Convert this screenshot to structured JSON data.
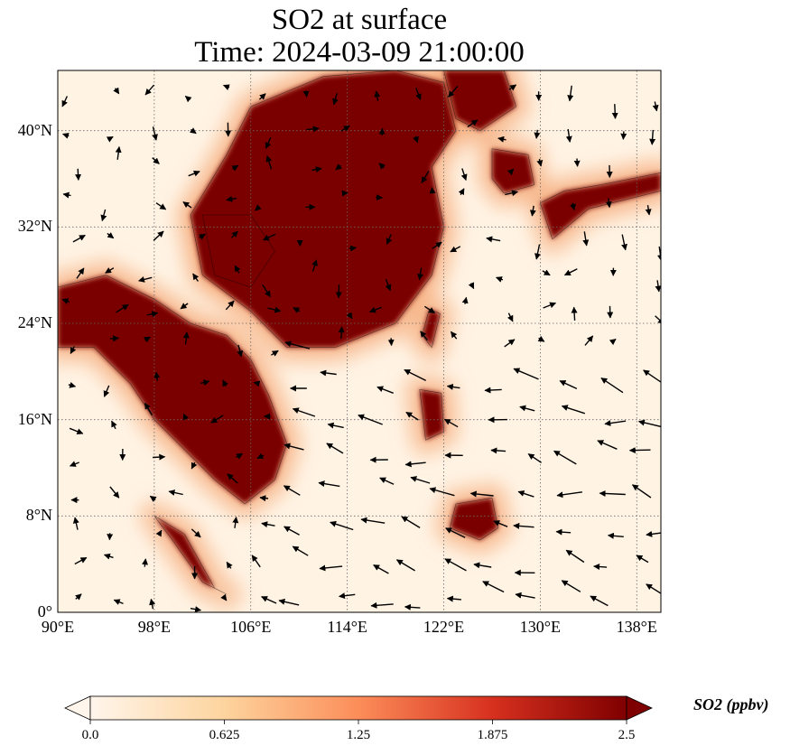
{
  "title_line1": "SO2 at surface",
  "title_line2": "Time: 2024-03-09 21:00:00",
  "map": {
    "lon_range": [
      90,
      140
    ],
    "lat_range": [
      0,
      45
    ],
    "lat_ticks": [
      {
        "value": 0,
        "label": "0°"
      },
      {
        "value": 8,
        "label": "8°N"
      },
      {
        "value": 16,
        "label": "16°N"
      },
      {
        "value": 24,
        "label": "24°N"
      },
      {
        "value": 32,
        "label": "32°N"
      },
      {
        "value": 40,
        "label": "40°N"
      }
    ],
    "lon_ticks": [
      {
        "value": 90,
        "label": "90°E"
      },
      {
        "value": 98,
        "label": "98°E"
      },
      {
        "value": 106,
        "label": "106°E"
      },
      {
        "value": 114,
        "label": "114°E"
      },
      {
        "value": 122,
        "label": "122°E"
      },
      {
        "value": 130,
        "label": "130°E"
      },
      {
        "value": 138,
        "label": "138°E"
      }
    ],
    "gridlines": true,
    "high_so2_regions": [
      {
        "name": "north-china-plain",
        "lon_lat": [
          [
            106,
            42
          ],
          [
            112,
            44.5
          ],
          [
            118,
            45
          ],
          [
            122,
            44
          ],
          [
            123,
            40
          ],
          [
            121,
            37
          ],
          [
            122,
            32
          ],
          [
            121,
            28
          ],
          [
            118,
            24
          ],
          [
            113,
            22
          ],
          [
            109,
            22
          ],
          [
            106,
            25
          ],
          [
            102,
            28
          ],
          [
            101,
            33
          ],
          [
            104,
            38
          ]
        ]
      },
      {
        "name": "sichuan-basin",
        "lon_lat": [
          [
            102,
            33
          ],
          [
            106,
            33
          ],
          [
            108,
            30
          ],
          [
            106,
            27
          ],
          [
            103,
            28
          ]
        ]
      },
      {
        "name": "northeast-china",
        "lon_lat": [
          [
            122,
            45
          ],
          [
            127,
            45
          ],
          [
            128,
            42
          ],
          [
            125,
            40
          ],
          [
            123,
            41
          ]
        ]
      },
      {
        "name": "korea",
        "lon_lat": [
          [
            126,
            38.5
          ],
          [
            129,
            38
          ],
          [
            129.5,
            35.5
          ],
          [
            127,
            34.8
          ],
          [
            126,
            36
          ]
        ]
      },
      {
        "name": "indochina",
        "lon_lat": [
          [
            90,
            27
          ],
          [
            94,
            28
          ],
          [
            98,
            26
          ],
          [
            101,
            24
          ],
          [
            104,
            23
          ],
          [
            106,
            21
          ],
          [
            107.5,
            18
          ],
          [
            109,
            14
          ],
          [
            108,
            11
          ],
          [
            105.5,
            9
          ],
          [
            103,
            11
          ],
          [
            100,
            14
          ],
          [
            98,
            16
          ],
          [
            96,
            19
          ],
          [
            93,
            22
          ],
          [
            90,
            22
          ]
        ]
      },
      {
        "name": "taiwan",
        "lon_lat": [
          [
            120.8,
            25.2
          ],
          [
            121.7,
            24.8
          ],
          [
            121,
            22
          ],
          [
            120.2,
            23
          ]
        ]
      },
      {
        "name": "japan-south",
        "lon_lat": [
          [
            130,
            34
          ],
          [
            132,
            35
          ],
          [
            135,
            35.5
          ],
          [
            140,
            36.5
          ],
          [
            140,
            35
          ],
          [
            134,
            33.5
          ],
          [
            131,
            31
          ]
        ]
      },
      {
        "name": "luzon",
        "lon_lat": [
          [
            120,
            18.5
          ],
          [
            121.8,
            18.2
          ],
          [
            122,
            15
          ],
          [
            120.5,
            14.3
          ]
        ]
      },
      {
        "name": "malay-peninsula",
        "lon_lat": [
          [
            98,
            8
          ],
          [
            100.5,
            6.5
          ],
          [
            103,
            2
          ],
          [
            104,
            1.5
          ],
          [
            102,
            2.5
          ],
          [
            99.5,
            6
          ]
        ]
      },
      {
        "name": "mindanao",
        "lon_lat": [
          [
            123,
            9
          ],
          [
            126,
            9.5
          ],
          [
            126.5,
            7
          ],
          [
            125,
            6
          ],
          [
            122.5,
            7
          ]
        ]
      }
    ],
    "wind_vectors_note": "surface wind arrows overlaid"
  },
  "colorbar": {
    "min": 0.0,
    "max": 2.5,
    "ticks": [
      "0.0",
      "0.625",
      "1.25",
      "1.875",
      "2.5"
    ],
    "label": "SO2 (ppbv)",
    "colormap": [
      "#fff5eb",
      "#fdd49e",
      "#fc8d59",
      "#d7301f",
      "#7f0000"
    ]
  }
}
